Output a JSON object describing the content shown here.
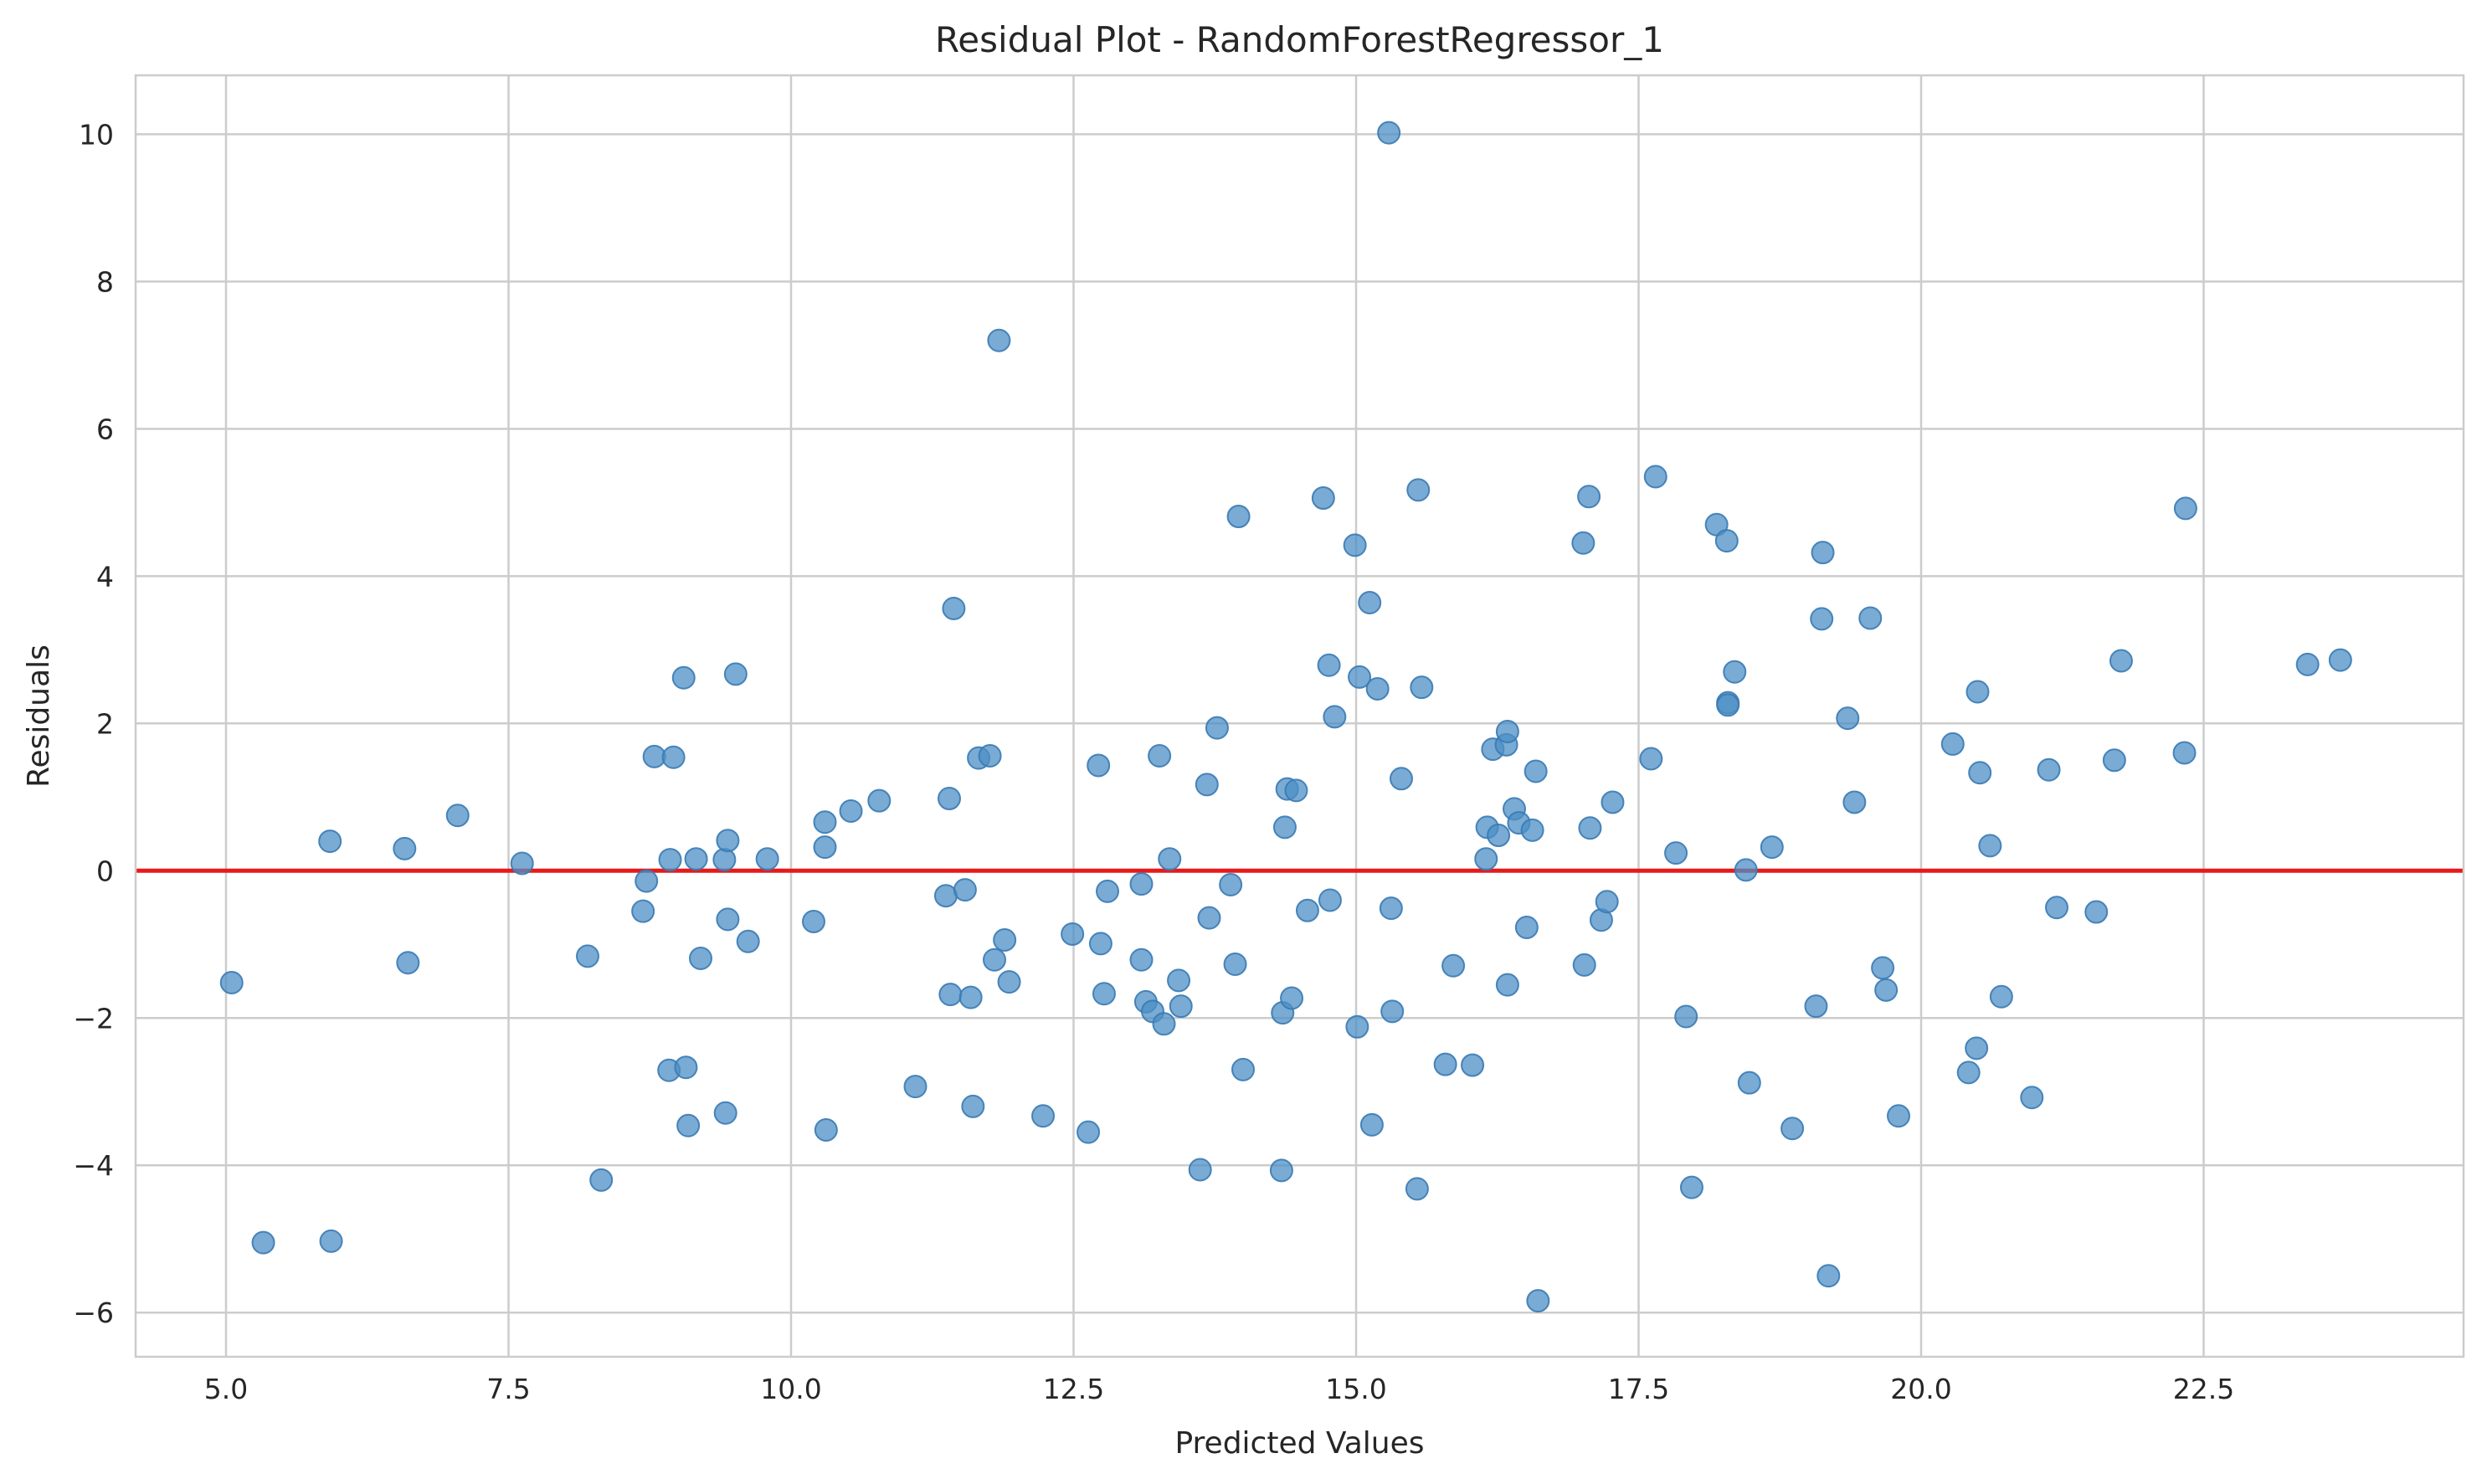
{
  "chart_data": {
    "type": "scatter",
    "title": "Residual Plot - RandomForestRegressor_1",
    "xlabel": "Predicted Values",
    "ylabel": "Residuals",
    "xlim": [
      4.2,
      24.8
    ],
    "ylim": [
      -6.6,
      10.8
    ],
    "xticks": [
      5.0,
      7.5,
      10.0,
      12.5,
      15.0,
      17.5,
      20.0,
      22.5
    ],
    "yticks": [
      -6,
      -4,
      -2,
      0,
      2,
      4,
      6,
      8,
      10
    ],
    "xtick_labels": [
      "5.0",
      "7.5",
      "10.0",
      "12.5",
      "15.0",
      "17.5",
      "20.0",
      "22.5"
    ],
    "ytick_labels": [
      "−6",
      "−4",
      "−2",
      "0",
      "2",
      "4",
      "6",
      "8",
      "10"
    ],
    "grid": true,
    "reference_line": {
      "y": 0,
      "color": "#e8191b"
    },
    "point_color": "#4c8fc6",
    "points": [
      [
        5.05,
        -1.52
      ],
      [
        5.33,
        -5.05
      ],
      [
        5.92,
        0.4
      ],
      [
        5.93,
        -5.03
      ],
      [
        6.58,
        0.3
      ],
      [
        6.61,
        -1.25
      ],
      [
        7.05,
        0.75
      ],
      [
        7.62,
        0.1
      ],
      [
        8.2,
        -1.16
      ],
      [
        8.32,
        -4.2
      ],
      [
        8.69,
        -0.55
      ],
      [
        8.72,
        -0.14
      ],
      [
        8.79,
        1.55
      ],
      [
        8.92,
        -2.71
      ],
      [
        8.93,
        0.15
      ],
      [
        8.96,
        1.54
      ],
      [
        9.05,
        2.62
      ],
      [
        9.07,
        -2.67
      ],
      [
        9.09,
        -3.46
      ],
      [
        9.16,
        0.16
      ],
      [
        9.2,
        -1.19
      ],
      [
        9.41,
        0.15
      ],
      [
        9.42,
        -3.29
      ],
      [
        9.44,
        -0.66
      ],
      [
        9.44,
        0.41
      ],
      [
        9.51,
        2.67
      ],
      [
        9.62,
        -0.96
      ],
      [
        9.79,
        0.16
      ],
      [
        10.2,
        -0.69
      ],
      [
        10.3,
        0.66
      ],
      [
        10.3,
        0.32
      ],
      [
        10.31,
        -3.52
      ],
      [
        10.53,
        0.81
      ],
      [
        10.78,
        0.95
      ],
      [
        11.1,
        -2.93
      ],
      [
        11.37,
        -0.34
      ],
      [
        11.4,
        0.98
      ],
      [
        11.41,
        -1.68
      ],
      [
        11.44,
        3.56
      ],
      [
        11.54,
        -0.26
      ],
      [
        11.59,
        -1.72
      ],
      [
        11.61,
        -3.2
      ],
      [
        11.66,
        1.53
      ],
      [
        11.76,
        1.56
      ],
      [
        11.8,
        -1.21
      ],
      [
        11.84,
        7.2
      ],
      [
        11.89,
        -0.94
      ],
      [
        11.93,
        -1.51
      ],
      [
        12.23,
        -3.33
      ],
      [
        12.49,
        -0.86
      ],
      [
        12.63,
        -3.55
      ],
      [
        12.72,
        1.43
      ],
      [
        12.74,
        -0.99
      ],
      [
        12.77,
        -1.67
      ],
      [
        12.8,
        -0.28
      ],
      [
        13.1,
        -0.18
      ],
      [
        13.1,
        -1.21
      ],
      [
        13.14,
        -1.78
      ],
      [
        13.2,
        -1.91
      ],
      [
        13.26,
        1.56
      ],
      [
        13.3,
        -2.08
      ],
      [
        13.35,
        0.16
      ],
      [
        13.43,
        -1.49
      ],
      [
        13.45,
        -1.84
      ],
      [
        13.62,
        -4.06
      ],
      [
        13.68,
        1.17
      ],
      [
        13.7,
        -0.64
      ],
      [
        13.77,
        1.94
      ],
      [
        13.89,
        -0.19
      ],
      [
        13.93,
        -1.27
      ],
      [
        13.96,
        4.81
      ],
      [
        14.0,
        -2.7
      ],
      [
        14.34,
        -4.07
      ],
      [
        14.35,
        -1.93
      ],
      [
        14.37,
        0.59
      ],
      [
        14.39,
        1.11
      ],
      [
        14.43,
        -1.73
      ],
      [
        14.47,
        1.09
      ],
      [
        14.57,
        -0.54
      ],
      [
        14.71,
        5.06
      ],
      [
        14.76,
        2.79
      ],
      [
        14.77,
        -0.4
      ],
      [
        14.81,
        2.09
      ],
      [
        14.99,
        4.42
      ],
      [
        15.01,
        -2.12
      ],
      [
        15.03,
        2.63
      ],
      [
        15.12,
        3.64
      ],
      [
        15.14,
        -3.45
      ],
      [
        15.19,
        2.47
      ],
      [
        15.29,
        10.02
      ],
      [
        15.31,
        -0.51
      ],
      [
        15.32,
        -1.91
      ],
      [
        15.4,
        1.25
      ],
      [
        15.54,
        -4.32
      ],
      [
        15.55,
        5.17
      ],
      [
        15.58,
        2.49
      ],
      [
        15.79,
        -2.63
      ],
      [
        15.86,
        -1.29
      ],
      [
        16.03,
        -2.64
      ],
      [
        16.15,
        0.16
      ],
      [
        16.16,
        0.59
      ],
      [
        16.21,
        1.65
      ],
      [
        16.26,
        0.48
      ],
      [
        16.33,
        1.71
      ],
      [
        16.34,
        -1.55
      ],
      [
        16.34,
        1.89
      ],
      [
        16.4,
        0.84
      ],
      [
        16.44,
        0.65
      ],
      [
        16.51,
        -0.77
      ],
      [
        16.56,
        0.55
      ],
      [
        16.59,
        1.35
      ],
      [
        16.61,
        -5.84
      ],
      [
        17.01,
        4.45
      ],
      [
        17.02,
        -1.28
      ],
      [
        17.06,
        5.08
      ],
      [
        17.07,
        0.58
      ],
      [
        17.17,
        -0.67
      ],
      [
        17.22,
        -0.42
      ],
      [
        17.27,
        0.93
      ],
      [
        17.61,
        1.52
      ],
      [
        17.65,
        5.35
      ],
      [
        17.83,
        0.24
      ],
      [
        17.92,
        -1.98
      ],
      [
        17.97,
        -4.3
      ],
      [
        18.19,
        4.7
      ],
      [
        18.28,
        4.48
      ],
      [
        18.29,
        2.28
      ],
      [
        18.29,
        2.25
      ],
      [
        18.35,
        2.7
      ],
      [
        18.45,
        0.01
      ],
      [
        18.48,
        -2.88
      ],
      [
        18.68,
        0.32
      ],
      [
        18.86,
        -3.5
      ],
      [
        19.07,
        -1.84
      ],
      [
        19.12,
        3.42
      ],
      [
        19.13,
        4.32
      ],
      [
        19.18,
        -5.5
      ],
      [
        19.35,
        2.07
      ],
      [
        19.41,
        0.93
      ],
      [
        19.55,
        3.43
      ],
      [
        19.66,
        -1.32
      ],
      [
        19.69,
        -1.62
      ],
      [
        19.8,
        -3.33
      ],
      [
        20.28,
        1.72
      ],
      [
        20.42,
        -2.74
      ],
      [
        20.49,
        -2.41
      ],
      [
        20.5,
        2.43
      ],
      [
        20.52,
        1.33
      ],
      [
        20.61,
        0.34
      ],
      [
        20.71,
        -1.71
      ],
      [
        20.98,
        -3.08
      ],
      [
        21.13,
        1.37
      ],
      [
        21.2,
        -0.5
      ],
      [
        21.55,
        -0.56
      ],
      [
        21.71,
        1.5
      ],
      [
        21.77,
        2.85
      ],
      [
        22.33,
        1.6
      ],
      [
        22.34,
        4.92
      ],
      [
        23.42,
        2.8
      ],
      [
        23.71,
        2.86
      ]
    ]
  }
}
